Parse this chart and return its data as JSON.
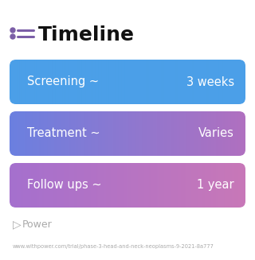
{
  "title": "Timeline",
  "title_icon_color": "#7B5EA7",
  "title_fontsize": 18,
  "background_color": "#ffffff",
  "rows": [
    {
      "label": "Screening ~",
      "value": "3 weeks",
      "color_left": "#4B9FE8",
      "color_right": "#4B9FE8"
    },
    {
      "label": "Treatment ~",
      "value": "Varies",
      "color_left": "#6B80E0",
      "color_right": "#B070C0"
    },
    {
      "label": "Follow ups ~",
      "value": "1 year",
      "color_left": "#A570CE",
      "color_right": "#C878B8"
    }
  ],
  "row_text_color": "#ffffff",
  "row_label_fontsize": 10.5,
  "row_value_fontsize": 10.5,
  "watermark_text": "Power",
  "watermark_color": "#aaaaaa",
  "watermark_fontsize": 9,
  "url_text": "www.withpower.com/trial/phase-3-head-and-neck-neoplasms-9-2021-8a777",
  "url_color": "#aaaaaa",
  "url_fontsize": 4.8
}
